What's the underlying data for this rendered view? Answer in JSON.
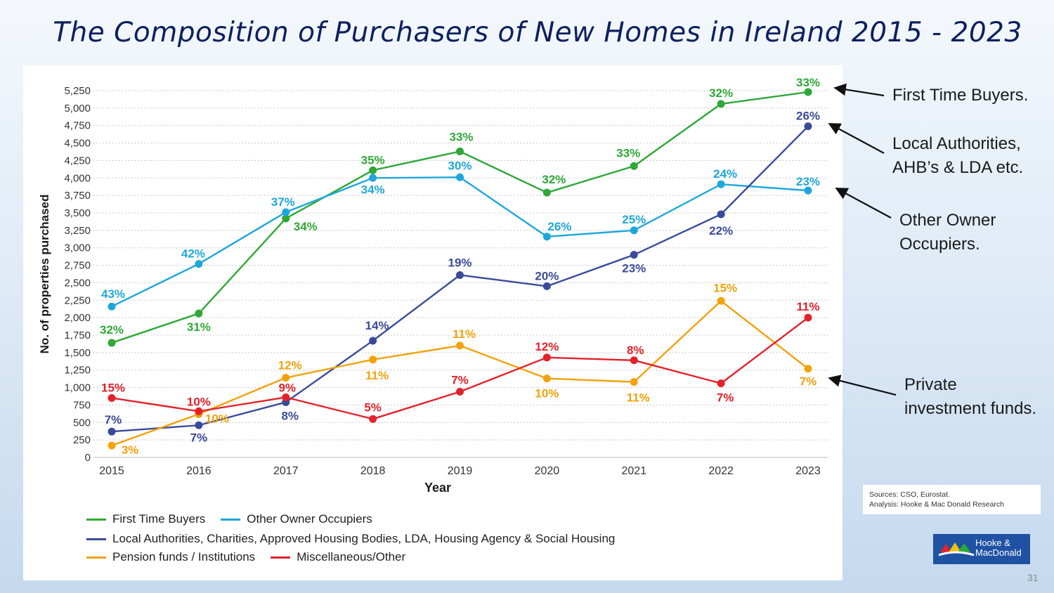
{
  "slide": {
    "title": "The Composition of Purchasers of New Homes in Ireland 2015 - 2023",
    "page_number": "31"
  },
  "callouts": {
    "first_time": "First Time Buyers.",
    "local_auth_1": "Local Authorities,",
    "local_auth_2": "AHB’s & LDA etc.",
    "other_owner_1": "Other Owner",
    "other_owner_2": "Occupiers.",
    "private_1": "Private",
    "private_2": "investment funds."
  },
  "sources": {
    "line1": "Sources: CSO, Eurostat.",
    "line2": "Analysis: Hooke & Mac Donald Research"
  },
  "logo": {
    "line1": "Hooke &",
    "line2": "MacDonald"
  },
  "legend": {
    "ftb": "First Time Buyers",
    "ooo": "Other Owner Occupiers",
    "la": "Local Authorities, Charities, Approved Housing Bodies, LDA, Housing Agency & Social Housing",
    "pf": "Pension funds / Institutions",
    "misc": "Miscellaneous/Other"
  },
  "chart_data": {
    "type": "line",
    "xlabel": "Year",
    "ylabel": "No. of properties purchased",
    "ylim": [
      0,
      5250
    ],
    "ytick_step": 250,
    "grid": "horizontal dotted",
    "x": [
      "2015",
      "2016",
      "2017",
      "2018",
      "2019",
      "2020",
      "2021",
      "2022",
      "2023"
    ],
    "series": [
      {
        "name": "First Time Buyers",
        "color": "#2ea836",
        "values": [
          1640,
          2060,
          3420,
          4110,
          4380,
          3790,
          4170,
          5060,
          5230
        ],
        "labels": [
          "32%",
          "31%",
          "34%",
          "35%",
          "33%",
          "32%",
          "33%",
          "32%",
          "33%"
        ]
      },
      {
        "name": "Other Owner Occupiers",
        "color": "#1ea6dc",
        "values": [
          2160,
          2770,
          3510,
          4000,
          4010,
          3160,
          3250,
          3910,
          3820
        ],
        "labels": [
          "43%",
          "42%",
          "37%",
          "34%",
          "30%",
          "26%",
          "25%",
          "24%",
          "23%"
        ]
      },
      {
        "name": "Local Authorities, Charities, Approved Housing Bodies, LDA, Housing Agency & Social Housing",
        "color": "#3a4a9a",
        "values": [
          370,
          460,
          790,
          1670,
          2610,
          2450,
          2900,
          3480,
          4740
        ],
        "labels": [
          "7%",
          "7%",
          "8%",
          "14%",
          "19%",
          "20%",
          "23%",
          "22%",
          "26%"
        ]
      },
      {
        "name": "Pension funds / Institutions",
        "color": "#f2a20c",
        "values": [
          170,
          620,
          1140,
          1400,
          1600,
          1130,
          1080,
          2240,
          1270
        ],
        "labels": [
          "3%",
          "10%",
          "12%",
          "11%",
          "11%",
          "10%",
          "11%",
          "15%",
          "7%"
        ]
      },
      {
        "name": "Miscellaneous/Other",
        "color": "#e4212a",
        "values": [
          850,
          660,
          860,
          550,
          940,
          1430,
          1390,
          1060,
          2000
        ],
        "labels": [
          "15%",
          "10%",
          "9%",
          "5%",
          "7%",
          "12%",
          "8%",
          "7%",
          "11%"
        ]
      }
    ]
  }
}
